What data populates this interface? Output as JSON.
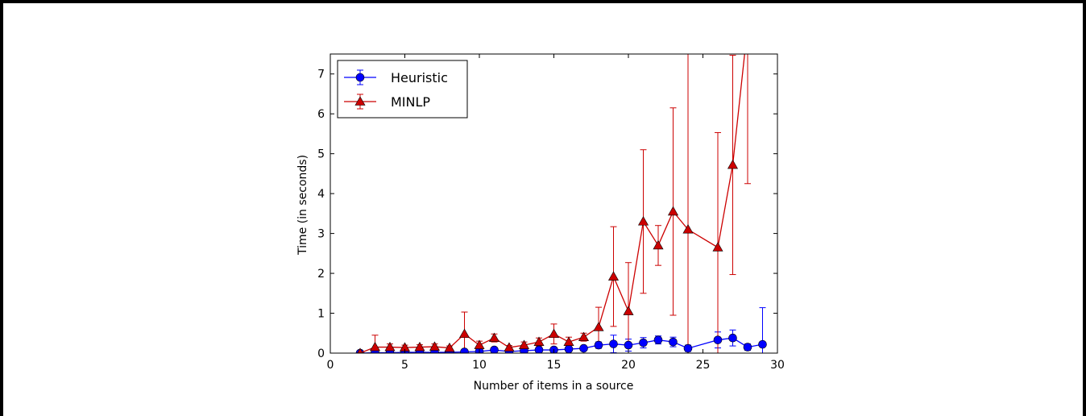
{
  "chart_data": {
    "type": "line",
    "xlabel": "Number of items in a source",
    "ylabel": "Time (in seconds)",
    "xlim": [
      0,
      30
    ],
    "ylim": [
      0,
      7.5
    ],
    "xticks": [
      0,
      5,
      10,
      15,
      20,
      25,
      30
    ],
    "yticks": [
      0,
      1,
      2,
      3,
      4,
      5,
      6,
      7
    ],
    "grid": false,
    "legend_position": "top-left",
    "series": [
      {
        "name": "Heuristic",
        "color": "#0000ff",
        "marker": "circle",
        "x": [
          2,
          3,
          4,
          5,
          6,
          7,
          8,
          9,
          10,
          11,
          12,
          13,
          14,
          15,
          16,
          17,
          18,
          19,
          20,
          21,
          22,
          23,
          24,
          26,
          27,
          28,
          29
        ],
        "y": [
          0.0,
          0.01,
          0.01,
          0.02,
          0.02,
          0.02,
          0.02,
          0.03,
          0.04,
          0.08,
          0.04,
          0.06,
          0.08,
          0.08,
          0.1,
          0.12,
          0.2,
          0.23,
          0.2,
          0.26,
          0.33,
          0.28,
          0.12,
          0.33,
          0.38,
          0.15,
          0.22
        ],
        "err": [
          0.0,
          0.01,
          0.01,
          0.01,
          0.01,
          0.01,
          0.01,
          0.02,
          0.02,
          0.04,
          0.02,
          0.03,
          0.04,
          0.04,
          0.05,
          0.06,
          0.08,
          0.22,
          0.15,
          0.13,
          0.1,
          0.12,
          0.08,
          0.2,
          0.2,
          0.08,
          0.92
        ]
      },
      {
        "name": "MINLP",
        "color": "#cc0000",
        "marker": "triangle",
        "x": [
          2,
          3,
          4,
          5,
          6,
          7,
          8,
          9,
          10,
          11,
          12,
          13,
          14,
          15,
          16,
          17,
          18,
          19,
          20,
          21,
          22,
          23,
          24,
          26,
          27,
          28
        ],
        "y": [
          0.0,
          0.15,
          0.15,
          0.14,
          0.15,
          0.16,
          0.13,
          0.48,
          0.2,
          0.38,
          0.14,
          0.2,
          0.28,
          0.48,
          0.28,
          0.4,
          0.65,
          1.92,
          1.05,
          3.3,
          2.7,
          3.55,
          3.1,
          2.65,
          4.72,
          8.2
        ],
        "err": [
          0.0,
          0.3,
          0.08,
          0.06,
          0.06,
          0.07,
          0.05,
          0.55,
          0.1,
          0.1,
          0.05,
          0.08,
          0.1,
          0.25,
          0.12,
          0.1,
          0.5,
          1.25,
          1.22,
          1.8,
          0.5,
          2.6,
          5.0,
          2.88,
          2.75,
          3.95
        ]
      }
    ]
  }
}
